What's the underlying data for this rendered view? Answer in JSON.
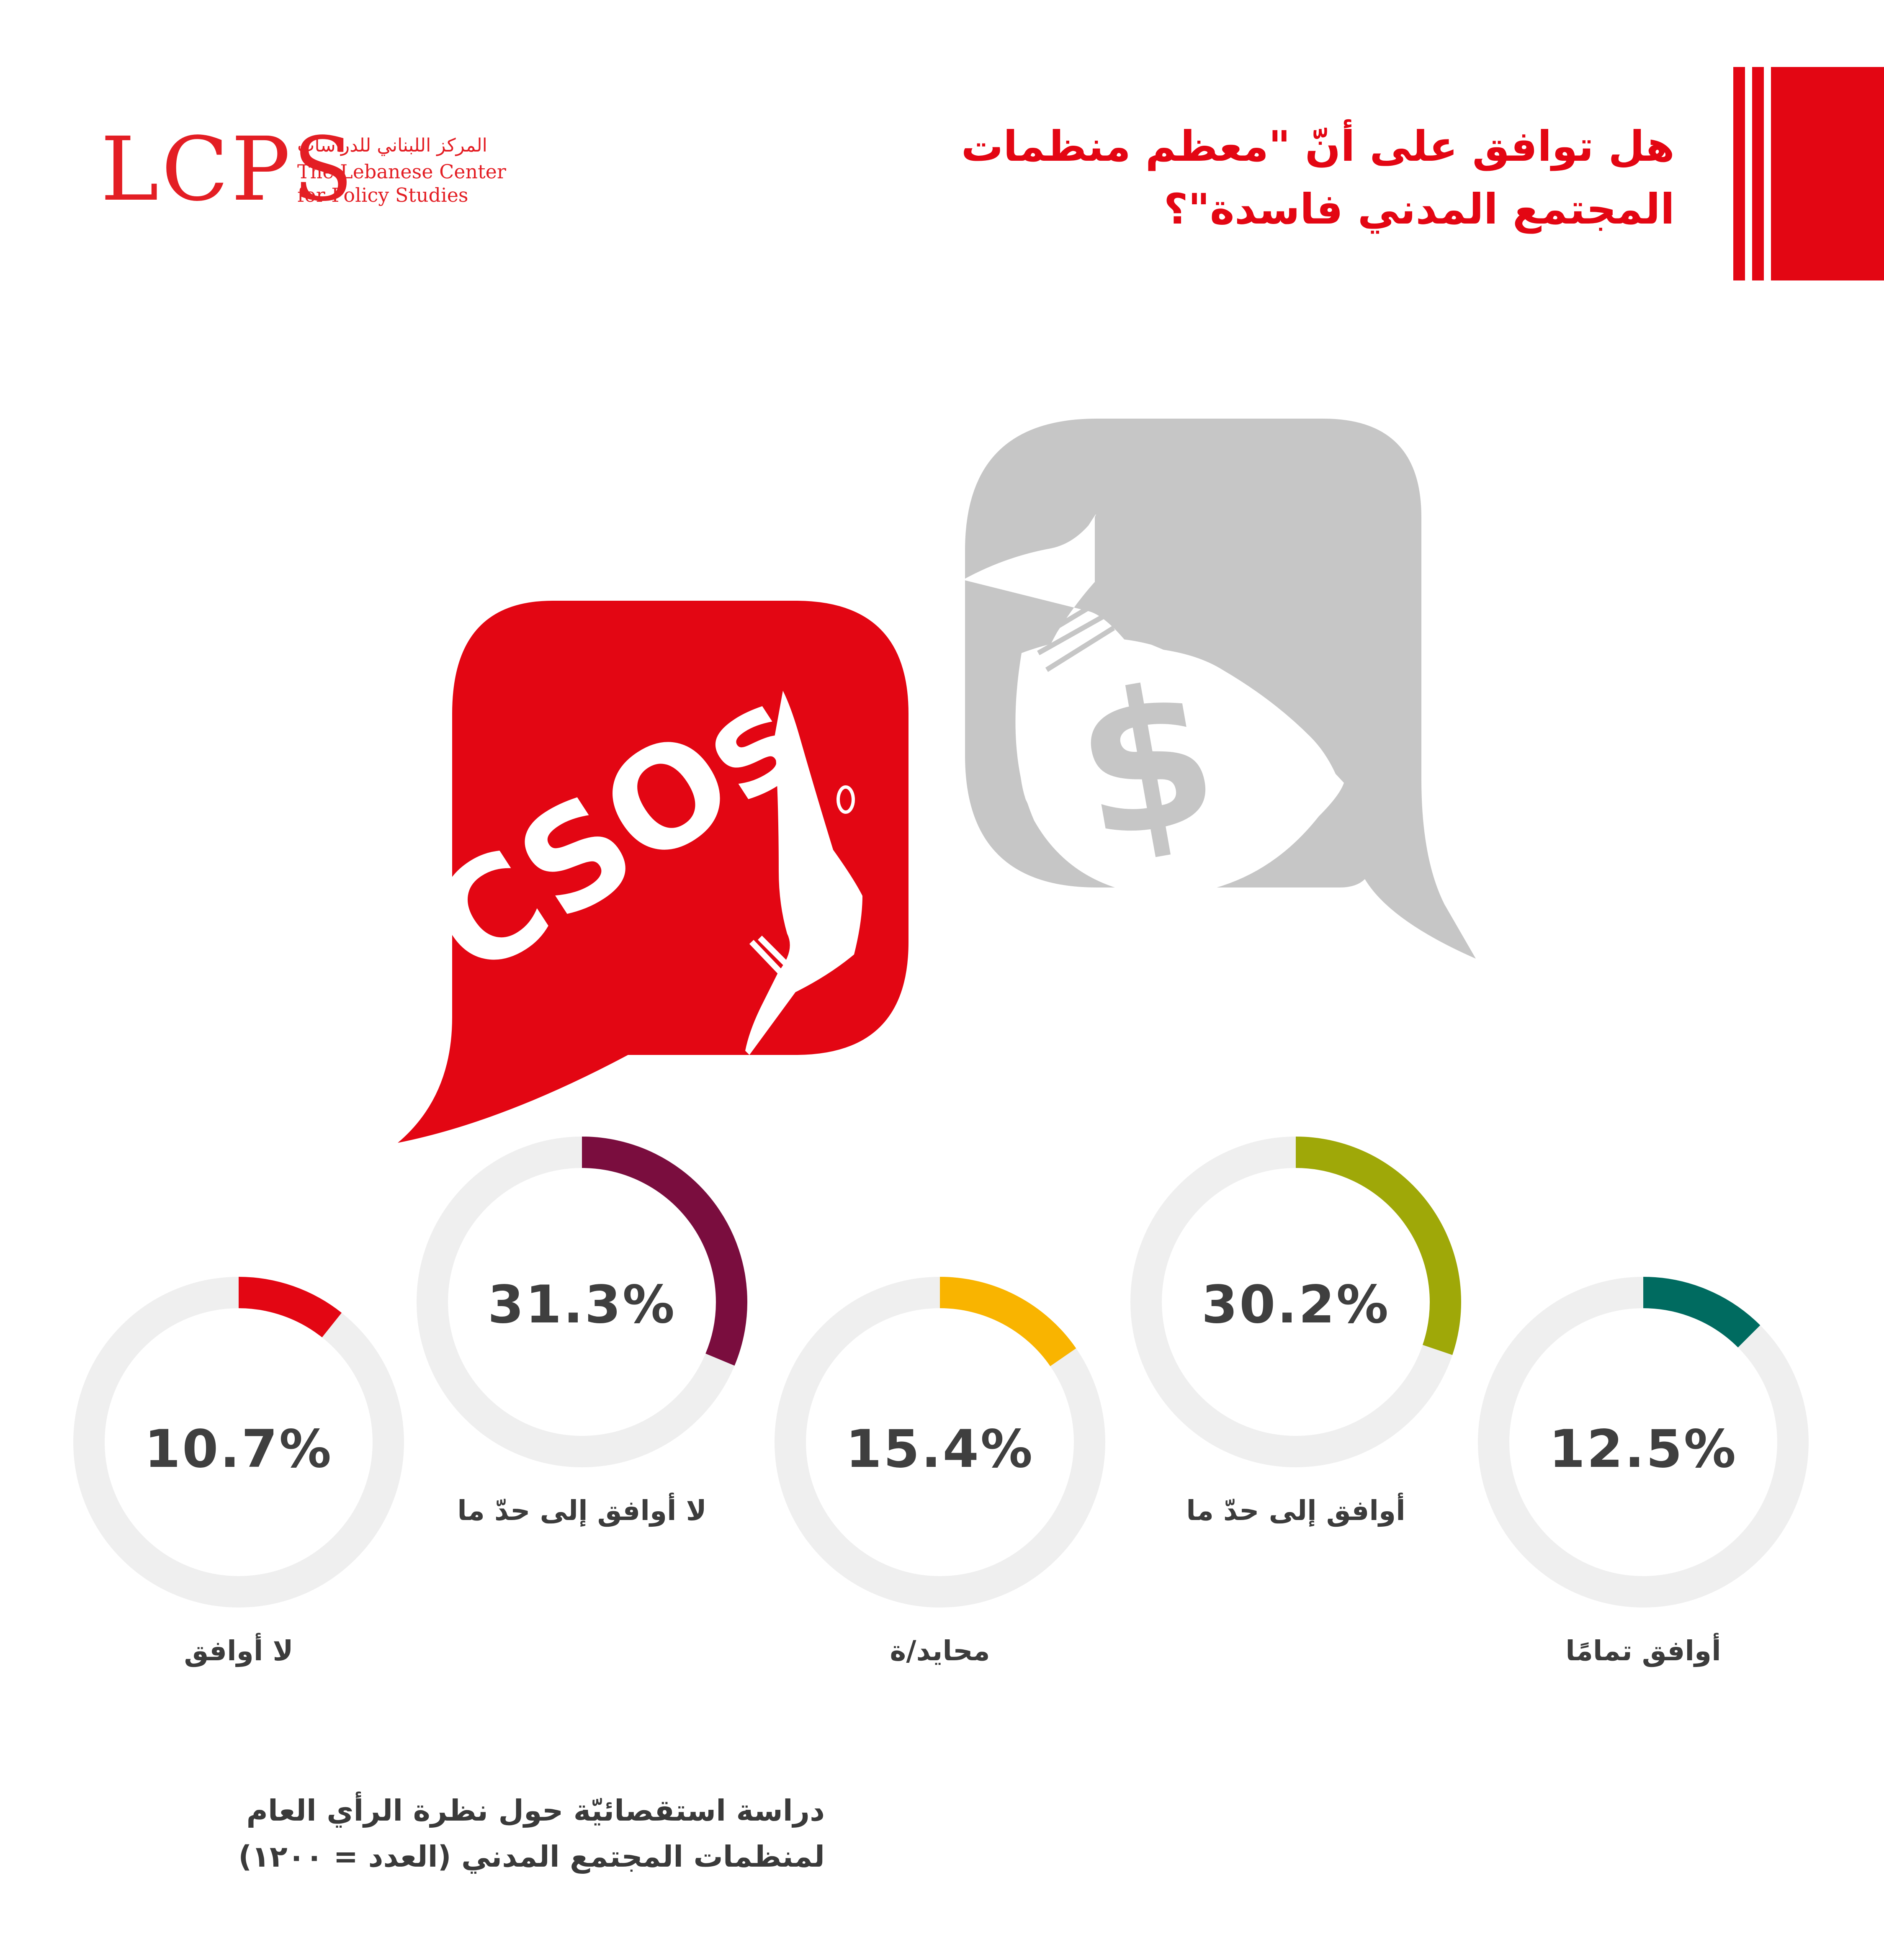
{
  "logo": {
    "abbr": "LCPS",
    "arabic_name": "المركز اللبناني للدراسات",
    "english_line1": "The Lebanese Center",
    "english_line2": "for Policy Studies"
  },
  "headline": {
    "line1": "هل توافق على أنّ \"معظم منظمات",
    "line2": "المجتمع المدني فاسدة\"؟"
  },
  "illustration": {
    "speech_text": "CSOs",
    "bag_symbol": "$"
  },
  "colors": {
    "brand_red": "#e30613",
    "ring_track": "#efefef",
    "bubble_gray": "#c6c6c6"
  },
  "chart_data": {
    "type": "donut",
    "categories": [
      "لا أوافق",
      "لا أوافق إلى حدّ ما",
      "محايد/ة",
      "أوافق إلى حدّ ما",
      "أوافق تمامًا"
    ],
    "values": [
      10.7,
      31.3,
      15.4,
      30.2,
      12.5
    ],
    "value_labels": [
      "10.7%",
      "31.3%",
      "15.4%",
      "30.2%",
      "12.5%"
    ],
    "colors": [
      "#e30613",
      "#7a0d3e",
      "#f9b400",
      "#9fa808",
      "#006b60"
    ],
    "unit": "%"
  },
  "footnote": {
    "line1": "دراسة استقصائيّة حول نظرة الرأي العام",
    "line2": "لمنظمات المجتمع المدني (العدد = ١٢٠٠)"
  }
}
